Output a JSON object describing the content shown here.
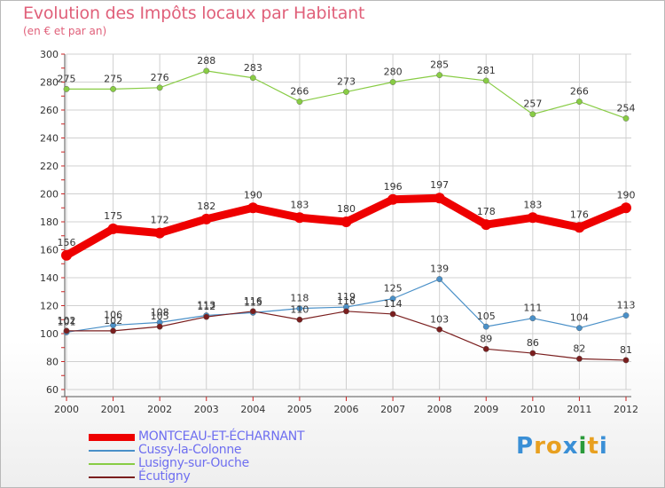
{
  "header": {
    "title": "Evolution des Impôts locaux par Habitant",
    "subtitle": "(en € et par an)"
  },
  "logo": {
    "text": "Proxiti",
    "letters": [
      "P",
      "r",
      "o",
      "x",
      "i",
      "t",
      "i"
    ],
    "colors": [
      "#3a8fd6",
      "#e8a020",
      "#e8a020",
      "#3a8fd6",
      "#2a9a3a",
      "#e8a020",
      "#3a8fd6"
    ]
  },
  "colors": {
    "title": "#e0607a",
    "grid": "#d0d0d0",
    "axis": "#555555",
    "tick": "#cc2222",
    "label": "#333333"
  },
  "chart_data": {
    "type": "line",
    "title": "Evolution des Impôts locaux par Habitant",
    "subtitle": "(en € et par an)",
    "x": [
      "2000",
      "2001",
      "2002",
      "2003",
      "2004",
      "2005",
      "2006",
      "2007",
      "2008",
      "2009",
      "2010",
      "2011",
      "2012"
    ],
    "ylim": [
      60,
      300
    ],
    "yticks": [
      60,
      80,
      100,
      120,
      140,
      160,
      180,
      200,
      220,
      240,
      260,
      280,
      300
    ],
    "grid": true,
    "legend_position": "bottom-left",
    "series": [
      {
        "name": "MONTCEAU-ET-ÉCHARNANT",
        "color": "#ee0000",
        "width": 9,
        "marker_r": 6,
        "values": [
          156,
          175,
          172,
          182,
          190,
          183,
          180,
          196,
          197,
          178,
          183,
          176,
          190
        ]
      },
      {
        "name": "Cussy-la-Colonne",
        "color": "#4a90c8",
        "width": 1.2,
        "marker_r": 3.2,
        "values": [
          101,
          106,
          108,
          113,
          115,
          118,
          119,
          125,
          139,
          105,
          111,
          104,
          113
        ]
      },
      {
        "name": "Lusigny-sur-Ouche",
        "color": "#88cc44",
        "width": 1.2,
        "marker_r": 3.2,
        "values": [
          275,
          275,
          276,
          288,
          283,
          266,
          273,
          280,
          285,
          281,
          257,
          266,
          254
        ]
      },
      {
        "name": "Écutigny",
        "color": "#7a1e1e",
        "width": 1.2,
        "marker_r": 3.2,
        "values": [
          102,
          102,
          105,
          112,
          116,
          110,
          116,
          114,
          103,
          89,
          86,
          82,
          81
        ]
      }
    ]
  }
}
